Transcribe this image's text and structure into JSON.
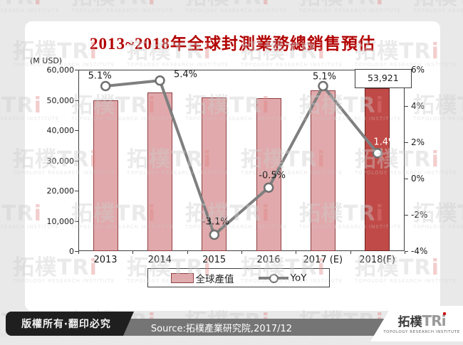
{
  "title": "2013~2018年全球封測業務總銷售預估",
  "chart": {
    "unit_label": "(M USD)",
    "y_left_ticks": [
      "60,000",
      "50,000",
      "40,000",
      "30,000",
      "20,000",
      "10,000",
      "0"
    ],
    "y_right_ticks": [
      "6%",
      "4%",
      "2%",
      "0%",
      "-2%",
      "-4%"
    ],
    "value_label": "53,921",
    "legend": {
      "bar_label": "全球產值",
      "line_label": "YoY"
    }
  },
  "chart_data": {
    "type": "combo-bar-line",
    "title": "2013~2018年全球封測業務總銷售預估",
    "categories": [
      "2013",
      "2014",
      "2015",
      "2016",
      "2017 (E)",
      "2018(F)"
    ],
    "series": [
      {
        "name": "全球產值",
        "type": "bar",
        "axis": "left",
        "unit": "M USD",
        "values": [
          49789,
          52477,
          50850,
          50596,
          53176,
          53921
        ],
        "highlight_index": 5,
        "labeled_value": "53,921",
        "note": "only the 2018(F) bar is labeled (53,921); other values estimated from YoY chain"
      },
      {
        "name": "YoY",
        "type": "line",
        "axis": "right",
        "unit": "%",
        "values": [
          5.1,
          5.4,
          -3.1,
          -0.5,
          5.1,
          1.4
        ],
        "point_labels": [
          "5.1%",
          "5.4%",
          "-3.1%",
          "-0.5%",
          "5.1%",
          "1.4%"
        ]
      }
    ],
    "ylabel_left": "(M USD)",
    "ylim_left": [
      0,
      60000
    ],
    "ylim_right": [
      -4,
      6
    ],
    "grid": false,
    "legend_position": "bottom"
  },
  "watermark": {
    "brand_prefix": "拓樸TR",
    "brand_i": "i",
    "subtitle": "TOPOLOGY RESEARCH INSTITUTE"
  },
  "footer": {
    "copyright": "版權所有‧翻印必究",
    "source": "Source:拓樸產業研究院,2017/12",
    "logo_cjk": "拓樸",
    "logo_tri": "TRi",
    "logo_subtitle": "TOPOLOGY RESEARCH INSTITUTE"
  },
  "colors": {
    "page_bg": "#e9e9e9",
    "card_bg": "#ffffff",
    "title": "#b20000",
    "bar_fill": "#e1a9ab",
    "bar_border": "#8e3e42",
    "bar_highlight_fill": "#c04a47",
    "bar_highlight_border": "#6b2422",
    "line": "#7f7f7f",
    "marker_fill": "#ffffff",
    "marker_border": "#707070",
    "axis": "#3f3f3f"
  }
}
